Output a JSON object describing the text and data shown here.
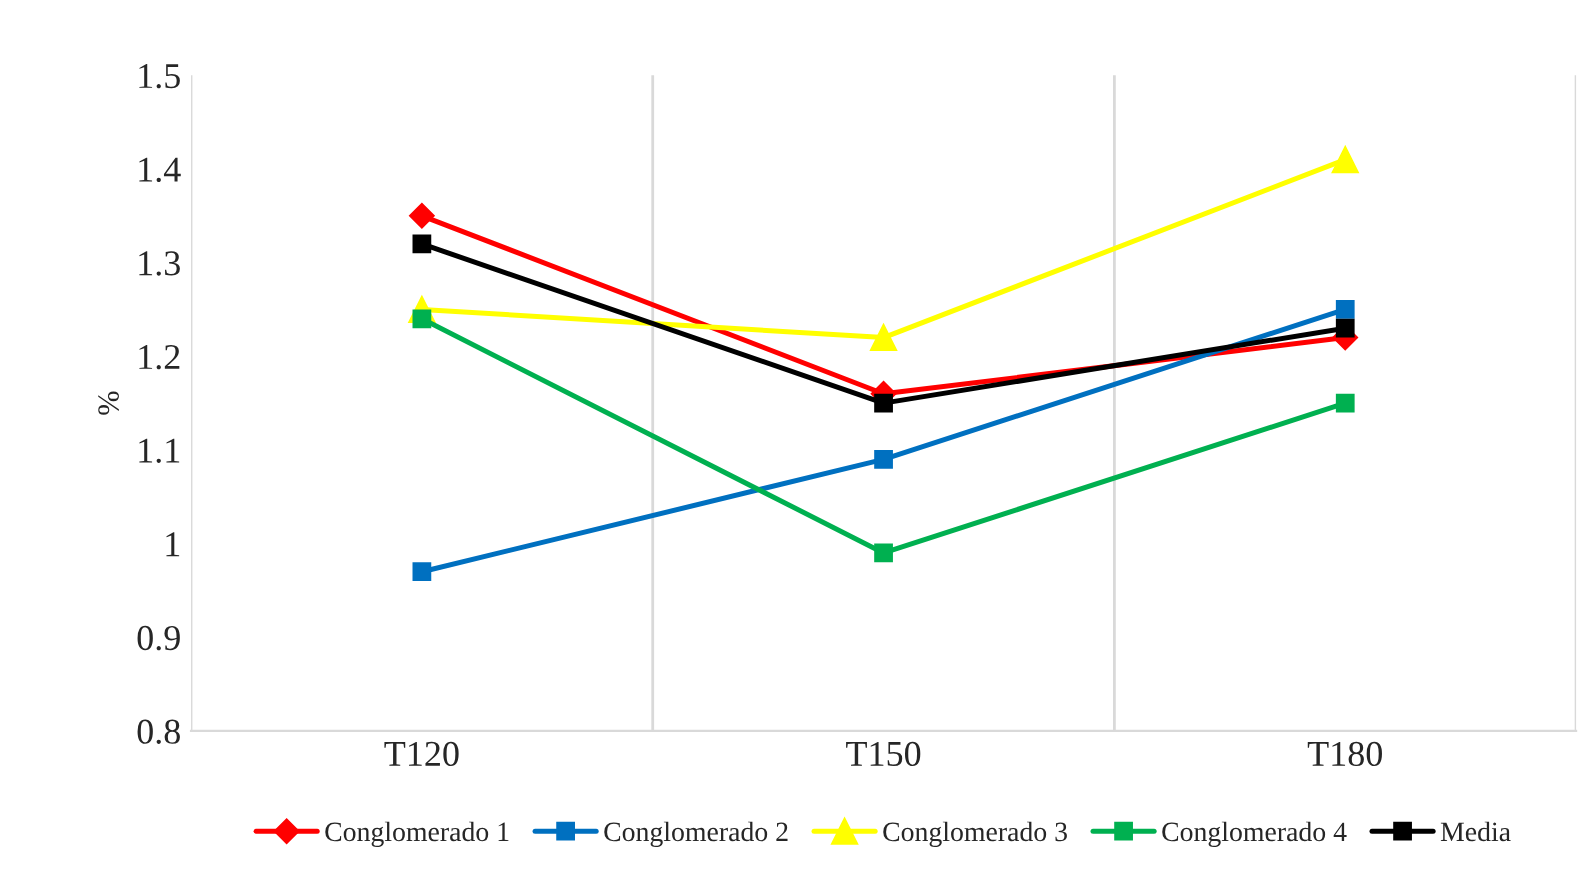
{
  "chart_data": {
    "type": "line",
    "ylabel": "%",
    "categories": [
      "T120",
      "T150",
      "T180"
    ],
    "series": [
      {
        "name": "Conglomerado 1",
        "color": "#ff0000",
        "marker": "diamond",
        "values": [
          1.35,
          1.16,
          1.22
        ]
      },
      {
        "name": "Conglomerado 2",
        "color": "#0070c0",
        "marker": "square",
        "values": [
          0.97,
          1.09,
          1.25
        ]
      },
      {
        "name": "Conglomerado 3",
        "color": "#ffff00",
        "marker": "triangle",
        "values": [
          1.25,
          1.22,
          1.41
        ]
      },
      {
        "name": "Conglomerado 4",
        "color": "#00b050",
        "marker": "square",
        "values": [
          1.24,
          0.99,
          1.15
        ]
      },
      {
        "name": "Media",
        "color": "#000000",
        "marker": "square",
        "values": [
          1.32,
          1.15,
          1.23
        ]
      }
    ],
    "ylim": [
      0.8,
      1.5
    ],
    "yticks": [
      0.8,
      0.9,
      1,
      1.1,
      1.2,
      1.3,
      1.4,
      1.5
    ],
    "grid": "x",
    "legend": "bottom",
    "line_style": "solid"
  }
}
